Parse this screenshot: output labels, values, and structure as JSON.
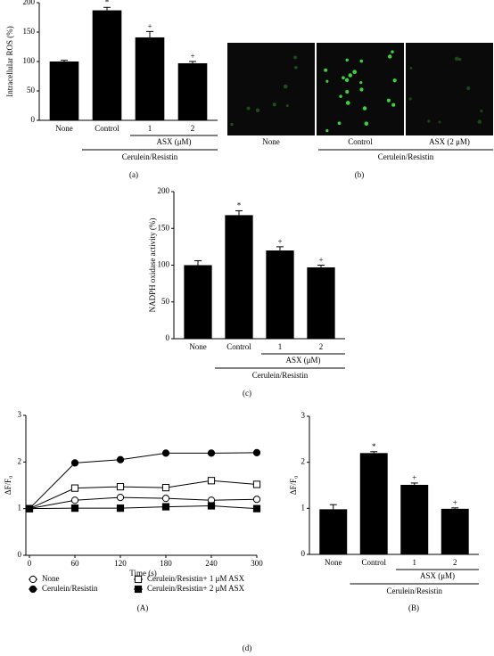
{
  "chart_data": [
    {
      "type": "bar",
      "y_label": "Intracellular ROS (%)",
      "panel_label": "(a)",
      "categories": [
        "None",
        "Control",
        "1",
        "2"
      ],
      "values": [
        100,
        187,
        141,
        97
      ],
      "errors": [
        2,
        5,
        10,
        3
      ],
      "significance": [
        null,
        "*",
        "+",
        "+"
      ],
      "subgroup_label": "ASX (μM)",
      "group_label": "Cerulein/Resistin",
      "color": "#000000",
      "ylim": [
        0,
        200
      ],
      "yticks": [
        0,
        50,
        100,
        150,
        200
      ]
    },
    {
      "type": "bar",
      "y_label": "NADPH oxidase activity (%)",
      "panel_label": "(c)",
      "categories": [
        "None",
        "Control",
        "1",
        "2"
      ],
      "values": [
        100,
        168,
        120,
        97
      ],
      "errors": [
        6,
        6,
        5,
        3
      ],
      "significance": [
        null,
        "*",
        "+",
        "+"
      ],
      "subgroup_label": "ASX (μM)",
      "group_label": "Cerulein/Resistin",
      "color": "#000000",
      "ylim": [
        0,
        200
      ],
      "yticks": [
        0,
        50,
        100,
        150,
        200
      ]
    },
    {
      "type": "line",
      "y_label": "ΔF/F₀",
      "x_label": "Time (s)",
      "panel_label": "(A)",
      "x": [
        0,
        60,
        120,
        180,
        240,
        300
      ],
      "xlim": [
        0,
        300
      ],
      "xticks": [
        0,
        60,
        120,
        180,
        240,
        300
      ],
      "ylim": [
        0,
        3
      ],
      "yticks": [
        0,
        1,
        2,
        3
      ],
      "series": [
        {
          "name": "None",
          "color": "#000000",
          "marker": "circle-open",
          "values": [
            1,
            1.18,
            1.24,
            1.22,
            1.18,
            1.2
          ]
        },
        {
          "name": "Cerulein/Resistin",
          "color": "#000000",
          "marker": "circle-filled",
          "values": [
            1,
            1.98,
            2.05,
            2.19,
            2.19,
            2.2
          ]
        },
        {
          "name": "Cerulein/Resistin+ 1 μM ASX",
          "color": "#000000",
          "marker": "square-open",
          "values": [
            1,
            1.44,
            1.47,
            1.45,
            1.6,
            1.52
          ]
        },
        {
          "name": "Cerulein/Resistin+ 2 μM ASX",
          "color": "#000000",
          "marker": "square-filled",
          "values": [
            1,
            1.01,
            1.01,
            1.04,
            1.06,
            1.0
          ]
        }
      ]
    },
    {
      "type": "bar",
      "y_label": "ΔF/F₀",
      "panel_label": "(B)",
      "categories": [
        "None",
        "Control",
        "1",
        "2"
      ],
      "values": [
        0.98,
        2.2,
        1.51,
        0.99
      ],
      "errors": [
        0.1,
        0.03,
        0.04,
        0.02
      ],
      "significance": [
        null,
        "*",
        "+",
        "+"
      ],
      "subgroup_label": "ASX (μM)",
      "group_label": "Cerulein/Resistin",
      "color": "#000000",
      "ylim": [
        0,
        3
      ],
      "yticks": [
        0,
        1,
        2,
        3
      ]
    }
  ],
  "panel_b": {
    "labels": [
      "None",
      "Control",
      "ASX (2 μM)"
    ],
    "group_label": "Cerulein/Resistin",
    "panel_label": "(b)"
  },
  "figure_label": "(d)"
}
